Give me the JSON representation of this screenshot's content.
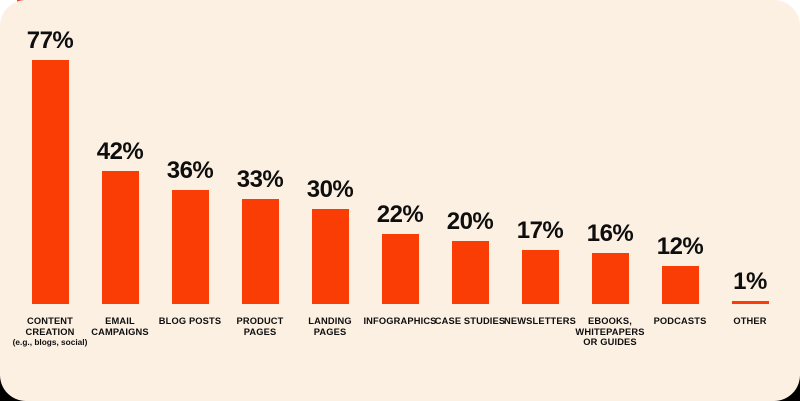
{
  "page": {
    "outside_background": "#FFFFFF",
    "card_background": "#FCF0E3",
    "bottom_edge_color": "#000000",
    "corner_fragment_color": "#E8402A"
  },
  "chart_data": {
    "type": "bar",
    "categories": [
      "CONTENT\nCREATION",
      "EMAIL\nCAMPAIGNS",
      "BLOG POSTS",
      "PRODUCT\nPAGES",
      "LANDING\nPAGES",
      "INFOGRAPHICS",
      "CASE STUDIES",
      "NEWSLETTERS",
      "EBOOKS,\nWHITEPAPERS\nOR GUIDES",
      "PODCASTS",
      "OTHER"
    ],
    "category_note": "(e.g., blogs, social)",
    "category_note_index": 0,
    "values": [
      77,
      42,
      36,
      33,
      30,
      22,
      20,
      17,
      16,
      12,
      1
    ],
    "value_labels": [
      "77%",
      "42%",
      "36%",
      "33%",
      "30%",
      "22%",
      "20%",
      "17%",
      "16%",
      "12%",
      "1%"
    ],
    "ylim": [
      0,
      80
    ],
    "grid": false,
    "legend": "none",
    "bar_color": "#FA3D05",
    "label_color": "#0E0E0E"
  }
}
